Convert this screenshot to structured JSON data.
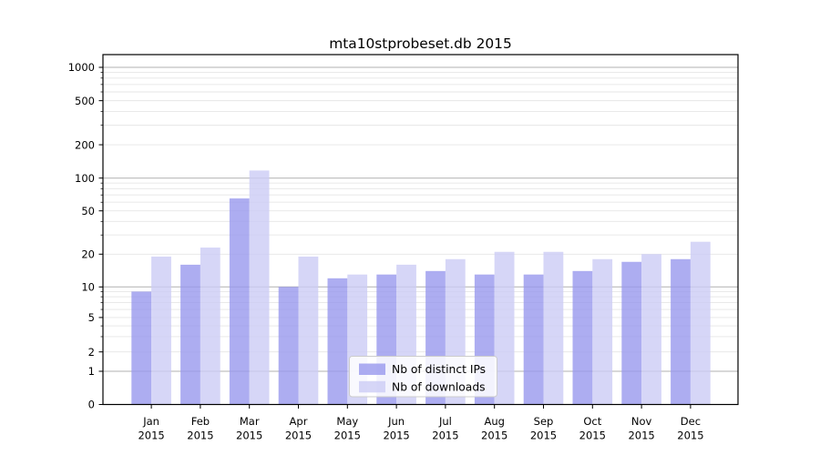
{
  "title": "mta10stprobeset.db 2015",
  "chart_data": {
    "type": "bar",
    "title": "mta10stprobeset.db 2015",
    "categories": [
      "Jan",
      "Feb",
      "Mar",
      "Apr",
      "May",
      "Jun",
      "Jul",
      "Aug",
      "Sep",
      "Oct",
      "Nov",
      "Dec"
    ],
    "year_label": "2015",
    "series": [
      {
        "name": "Nb of distinct IPs",
        "key": "distinct-ips",
        "color": "#9898ee",
        "values": [
          9,
          16,
          65,
          10,
          12,
          13,
          14,
          13,
          13,
          14,
          17,
          18
        ]
      },
      {
        "name": "Nb of downloads",
        "key": "downloads",
        "color": "#ccccf5",
        "values": [
          19,
          23,
          117,
          19,
          13,
          16,
          18,
          21,
          21,
          18,
          20,
          26
        ]
      }
    ],
    "yscale": "symlog",
    "y_tick_labels": [
      0,
      1,
      2,
      5,
      10,
      20,
      50,
      100,
      200,
      500,
      1000
    ],
    "ylim": [
      0,
      1250
    ],
    "grid": true,
    "legend_position": "lower center",
    "colors": {
      "major_grid": "#b0b0b0",
      "minor_grid": "#e6e6e6",
      "spine": "#000000",
      "legend_border": "#cccccc",
      "legend_bg": "#ffffff"
    }
  }
}
